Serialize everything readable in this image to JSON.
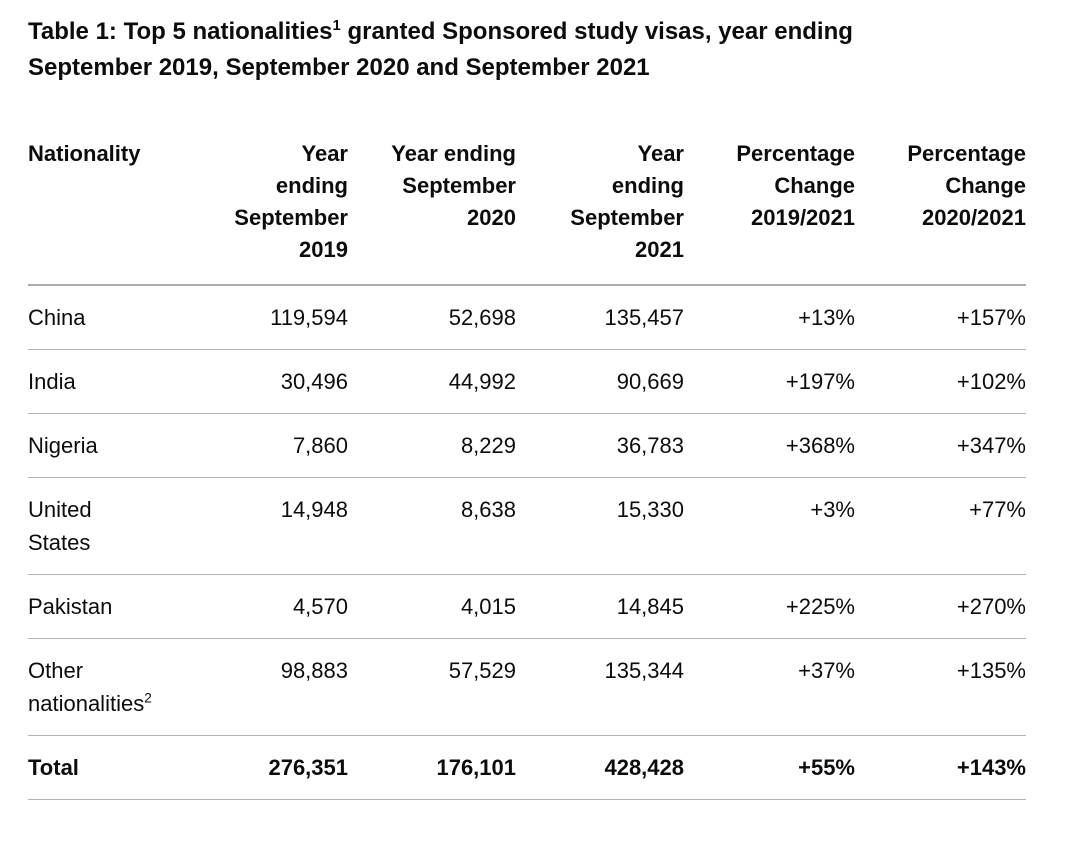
{
  "page": {
    "background": "#ffffff",
    "text_color": "#0b0c0c",
    "row_border_color": "#b1b4b6",
    "header_border_color": "#aaadb0"
  },
  "title": {
    "prefix": "Table 1: Top 5 nationalities",
    "superscript": "1",
    "suffix": " granted Sponsored study visas, year ending September 2019, September 2020 and September 2021"
  },
  "table": {
    "columns": [
      {
        "label_lines": [
          "Nationality"
        ],
        "align": "left"
      },
      {
        "label_lines": [
          "Year",
          "ending",
          "September",
          "2019"
        ],
        "align": "right"
      },
      {
        "label_lines": [
          "Year ending",
          "September",
          "2020"
        ],
        "align": "right"
      },
      {
        "label_lines": [
          "Year",
          "ending",
          "September",
          "2021"
        ],
        "align": "right"
      },
      {
        "label_lines": [
          "Percentage",
          "Change",
          "2019/2021"
        ],
        "align": "right"
      },
      {
        "label_lines": [
          "Percentage",
          "Change",
          "2020/2021"
        ],
        "align": "right"
      }
    ],
    "rows": [
      {
        "label_lines": [
          "China"
        ],
        "label_sup": "",
        "bold": false,
        "values": [
          "119,594",
          "52,698",
          "135,457",
          "+13%",
          "+157%"
        ]
      },
      {
        "label_lines": [
          "India"
        ],
        "label_sup": "",
        "bold": false,
        "values": [
          "30,496",
          "44,992",
          "90,669",
          "+197%",
          "+102%"
        ]
      },
      {
        "label_lines": [
          "Nigeria"
        ],
        "label_sup": "",
        "bold": false,
        "values": [
          "7,860",
          "8,229",
          "36,783",
          "+368%",
          "+347%"
        ]
      },
      {
        "label_lines": [
          "United",
          "States"
        ],
        "label_sup": "",
        "bold": false,
        "values": [
          "14,948",
          "8,638",
          "15,330",
          "+3%",
          "+77%"
        ]
      },
      {
        "label_lines": [
          "Pakistan"
        ],
        "label_sup": "",
        "bold": false,
        "values": [
          "4,570",
          "4,015",
          "14,845",
          "+225%",
          "+270%"
        ]
      },
      {
        "label_lines": [
          "Other",
          "nationalities"
        ],
        "label_sup": "2",
        "bold": false,
        "values": [
          "98,883",
          "57,529",
          "135,344",
          "+37%",
          "+135%"
        ]
      },
      {
        "label_lines": [
          "Total"
        ],
        "label_sup": "",
        "bold": true,
        "values": [
          "276,351",
          "176,101",
          "428,428",
          "+55%",
          "+143%"
        ]
      }
    ]
  },
  "chart_data": {
    "type": "table",
    "title": "Table 1: Top 5 nationalities(1) granted Sponsored study visas, year ending September 2019, September 2020 and September 2021",
    "columns": [
      "Nationality",
      "Year ending September 2019",
      "Year ending September 2020",
      "Year ending September 2021",
      "Percentage Change 2019/2021",
      "Percentage Change 2020/2021"
    ],
    "rows": [
      [
        "China",
        119594,
        52698,
        135457,
        "+13%",
        "+157%"
      ],
      [
        "India",
        30496,
        44992,
        90669,
        "+197%",
        "+102%"
      ],
      [
        "Nigeria",
        7860,
        8229,
        36783,
        "+368%",
        "+347%"
      ],
      [
        "United States",
        14948,
        8638,
        15330,
        "+3%",
        "+77%"
      ],
      [
        "Pakistan",
        4570,
        4015,
        14845,
        "+225%",
        "+270%"
      ],
      [
        "Other nationalities(2)",
        98883,
        57529,
        135344,
        "+37%",
        "+135%"
      ],
      [
        "Total",
        276351,
        176101,
        428428,
        "+55%",
        "+143%"
      ]
    ],
    "footnote_markers": [
      "1",
      "2"
    ]
  }
}
